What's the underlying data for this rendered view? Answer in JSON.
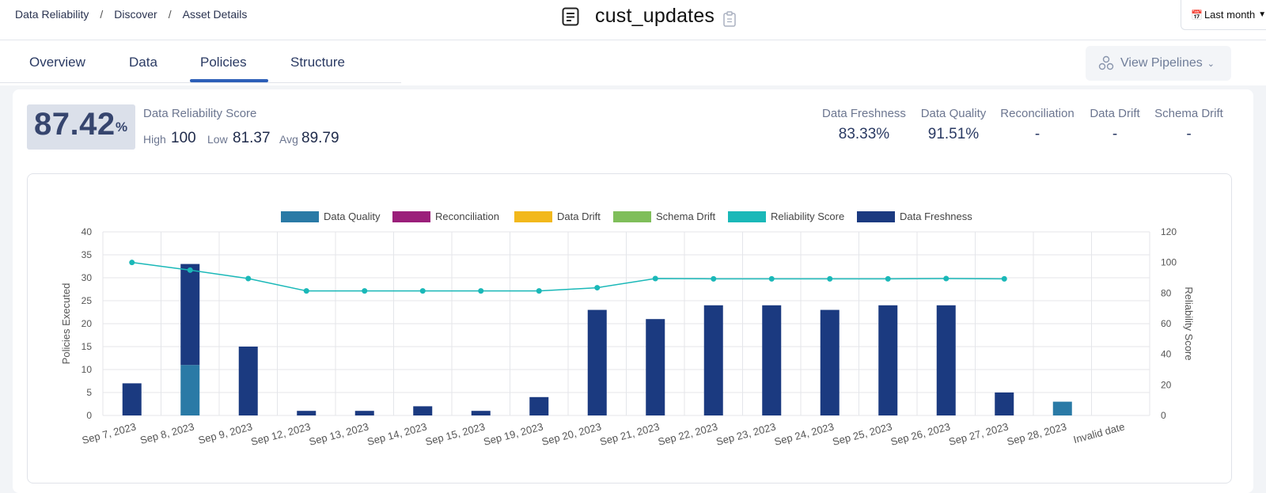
{
  "breadcrumb": [
    "Data Reliability",
    "Discover",
    "Asset Details"
  ],
  "breadcrumb_sep": "/",
  "asset": {
    "title": "cust_updates"
  },
  "date_range": {
    "label": "Last month",
    "icon": "calendar-icon"
  },
  "tabs": [
    {
      "label": "Overview",
      "active": false
    },
    {
      "label": "Data",
      "active": false
    },
    {
      "label": "Policies",
      "active": true
    },
    {
      "label": "Structure",
      "active": false
    }
  ],
  "view_pipelines": {
    "label": "View Pipelines",
    "icon": "pipelines-icon"
  },
  "score": {
    "value": "87.42",
    "unit": "%",
    "label": "Data Reliability Score",
    "high_label": "High",
    "high": "100",
    "low_label": "Low",
    "low": "81.37",
    "avg_label": "Avg",
    "avg": "89.79"
  },
  "metrics": [
    {
      "label": "Data Freshness",
      "value": "83.33%"
    },
    {
      "label": "Data Quality",
      "value": "91.51%"
    },
    {
      "label": "Reconciliation",
      "value": "-"
    },
    {
      "label": "Data Drift",
      "value": "-"
    },
    {
      "label": "Schema Drift",
      "value": "-"
    }
  ],
  "colors": {
    "data_quality": "#2a7aa6",
    "reconciliation": "#9b1f7a",
    "data_drift": "#f2b81c",
    "schema_drift": "#7fbe5a",
    "reliability_score": "#1ab8b8",
    "data_freshness": "#1b3a80"
  },
  "chart_data": {
    "type": "bar",
    "categories": [
      "Sep 7, 2023",
      "Sep 8, 2023",
      "Sep 9, 2023",
      "Sep 12, 2023",
      "Sep 13, 2023",
      "Sep 14, 2023",
      "Sep 15, 2023",
      "Sep 19, 2023",
      "Sep 20, 2023",
      "Sep 21, 2023",
      "Sep 22, 2023",
      "Sep 23, 2023",
      "Sep 24, 2023",
      "Sep 25, 2023",
      "Sep 26, 2023",
      "Sep 27, 2023",
      "Sep 28, 2023",
      "Invalid date"
    ],
    "series": [
      {
        "name": "Data Quality",
        "axis": "left",
        "type": "bar",
        "values": [
          0,
          11,
          0,
          0,
          0,
          0,
          0,
          0,
          0,
          0,
          0,
          0,
          0,
          0,
          0,
          0,
          3,
          0
        ]
      },
      {
        "name": "Reconciliation",
        "axis": "left",
        "type": "bar",
        "values": [
          0,
          0,
          0,
          0,
          0,
          0,
          0,
          0,
          0,
          0,
          0,
          0,
          0,
          0,
          0,
          0,
          0,
          0
        ]
      },
      {
        "name": "Data Drift",
        "axis": "left",
        "type": "bar",
        "values": [
          0,
          0,
          0,
          0,
          0,
          0,
          0,
          0,
          0,
          0,
          0,
          0,
          0,
          0,
          0,
          0,
          0,
          0
        ]
      },
      {
        "name": "Schema Drift",
        "axis": "left",
        "type": "bar",
        "values": [
          0,
          0,
          0,
          0,
          0,
          0,
          0,
          0,
          0,
          0,
          0,
          0,
          0,
          0,
          0,
          0,
          0,
          0
        ]
      },
      {
        "name": "Reliability Score",
        "axis": "right",
        "type": "line",
        "values": [
          100,
          95,
          89.5,
          81.4,
          81.4,
          81.4,
          81.4,
          81.4,
          83.5,
          89.5,
          89.3,
          89.3,
          89.3,
          89.3,
          89.5,
          89.3,
          null,
          null
        ]
      },
      {
        "name": "Data Freshness",
        "axis": "left",
        "type": "bar",
        "values": [
          7,
          22,
          15,
          1,
          1,
          2,
          1,
          4,
          23,
          21,
          24,
          24,
          23,
          24,
          24,
          5,
          0,
          0
        ]
      }
    ],
    "ylabel": "Policies Executed",
    "ylim": [
      0,
      40
    ],
    "yticks": [
      0,
      5,
      10,
      15,
      20,
      25,
      30,
      35,
      40
    ],
    "y2label": "Reliability Score",
    "y2lim": [
      0,
      120
    ],
    "y2ticks": [
      0,
      20,
      40,
      60,
      80,
      100,
      120
    ],
    "grid": true,
    "legend": "top-center",
    "stacked": true
  }
}
